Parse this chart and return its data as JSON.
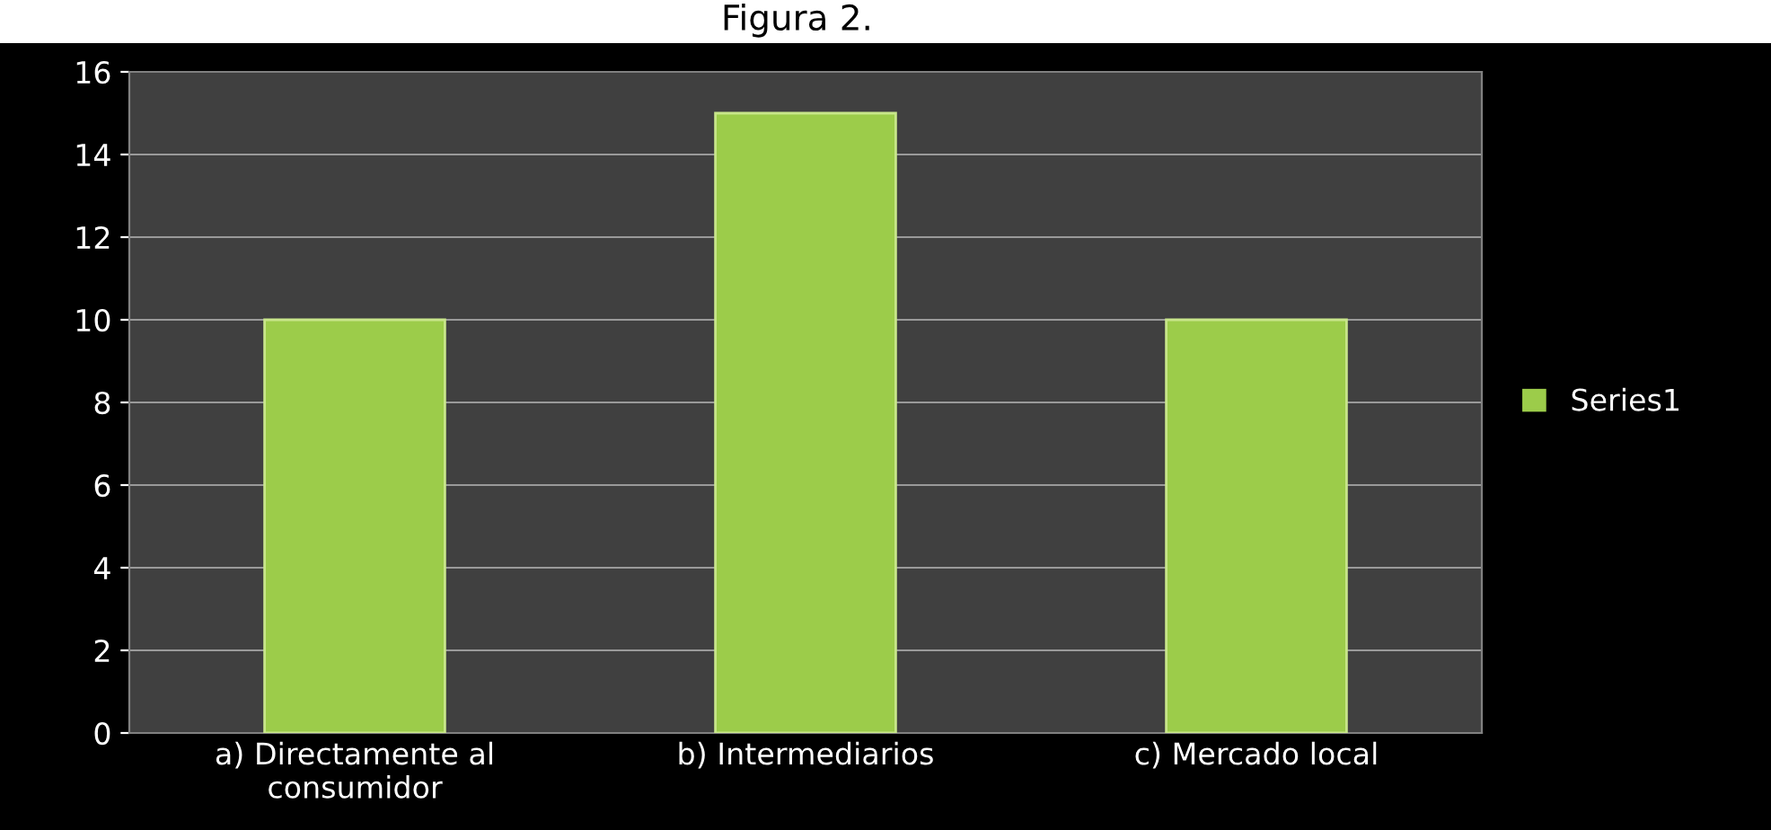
{
  "chart_data": {
    "type": "bar",
    "title": "Figura 2.",
    "categories": [
      "a) Directamente al\nconsumidor",
      "b) Intermediarios",
      "c) Mercado local"
    ],
    "series": [
      {
        "name": "Series1",
        "color": "#9ccc4a",
        "values": [
          10,
          15,
          10
        ]
      }
    ],
    "ylim": [
      0,
      16
    ],
    "yticks": [
      0,
      2,
      4,
      6,
      8,
      10,
      12,
      14,
      16
    ],
    "grid": "y",
    "legend": "right"
  }
}
